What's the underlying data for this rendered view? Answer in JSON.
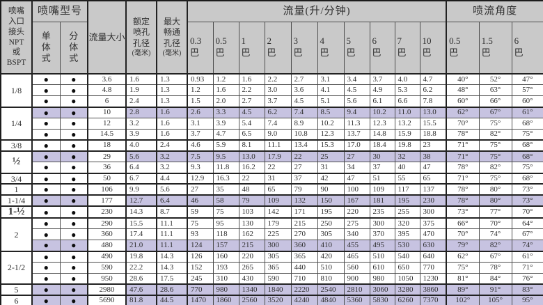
{
  "colors": {
    "header_bg": "#c9c9c9",
    "highlight_row": "#c7c3e1",
    "grid_line": "#4d4d4d",
    "frame": "#1c1c1c",
    "text": "#2e2e2e"
  },
  "dot": "●",
  "header": {
    "inlet_label": "喷嘴\n入口\n接头\nNPT\n或\nBSPT",
    "model_group_label": "喷嘴型号",
    "single_type_label": "单\n体\n式",
    "split_type_label": "分\n体\n式",
    "flow_size_label": "流量大小",
    "rated_orifice_label": "额定\n喷孔\n孔径",
    "max_orifice_label": "最大\n畅通\n孔径",
    "orifice_unit": "(毫米)",
    "flow_group_label": "流量(升/分钟)",
    "bar": "巴",
    "flow_pressures": [
      "0.3",
      "0.5",
      "1",
      "2",
      "3",
      "4",
      "5",
      "6",
      "7",
      "10"
    ],
    "angle_group_label": "喷流角度",
    "angle_pressures": [
      "0.5",
      "1.5",
      "6"
    ]
  },
  "groups": [
    {
      "size": "1/8",
      "bold": false,
      "rows": [
        {
          "size": "3.6",
          "rated": "1.6",
          "max": "1.3",
          "hl": false,
          "flows": [
            "0.93",
            "1.2",
            "1.6",
            "2.2",
            "2.7",
            "3.1",
            "3.4",
            "3.7",
            "4.0",
            "4.7"
          ],
          "angles": [
            "40°",
            "52°",
            "47°"
          ]
        },
        {
          "size": "4.8",
          "rated": "1.9",
          "max": "1.3",
          "hl": false,
          "flows": [
            "1.2",
            "1.6",
            "2.2",
            "3.0",
            "3.6",
            "4.1",
            "4.5",
            "4.9",
            "5.3",
            "6.2"
          ],
          "angles": [
            "48°",
            "63°",
            "57°"
          ]
        },
        {
          "size": "6",
          "rated": "2.4",
          "max": "1.3",
          "hl": false,
          "flows": [
            "1.5",
            "2.0",
            "2.7",
            "3.7",
            "4.5",
            "5.1",
            "5.6",
            "6.1",
            "6.6",
            "7.8"
          ],
          "angles": [
            "60°",
            "66°",
            "60°"
          ]
        }
      ]
    },
    {
      "size": "1/4",
      "bold": false,
      "rows": [
        {
          "size": "10",
          "rated": "2.8",
          "max": "1.6",
          "hl": true,
          "flows": [
            "2.6",
            "3.3",
            "4.5",
            "6.2",
            "7.4",
            "8.5",
            "9.4",
            "10.2",
            "11.0",
            "13.0"
          ],
          "angles": [
            "62°",
            "67°",
            "61°"
          ]
        },
        {
          "size": "12",
          "rated": "3.2",
          "max": "1.6",
          "hl": false,
          "flows": [
            "3.1",
            "3.9",
            "5.4",
            "7.4",
            "8.9",
            "10.2",
            "11.3",
            "12.3",
            "13.2",
            "15.5"
          ],
          "angles": [
            "70°",
            "75°",
            "68°"
          ]
        },
        {
          "size": "14.5",
          "rated": "3.9",
          "max": "1.6",
          "hl": false,
          "flows": [
            "3.7",
            "4.7",
            "6.5",
            "9.0",
            "10.8",
            "12.3",
            "13.7",
            "14.8",
            "15.9",
            "18.8"
          ],
          "angles": [
            "78°",
            "82°",
            "75°"
          ]
        }
      ]
    },
    {
      "size": "3/8",
      "bold": false,
      "rows": [
        {
          "size": "18",
          "rated": "4.0",
          "max": "2.4",
          "hl": false,
          "flows": [
            "4.6",
            "5.9",
            "8.1",
            "11.1",
            "13.4",
            "15.3",
            "17.0",
            "18.4",
            "19.8",
            "23"
          ],
          "angles": [
            "71°",
            "75°",
            "68°"
          ]
        }
      ]
    },
    {
      "size": "½",
      "bold": true,
      "rows": [
        {
          "size": "29",
          "rated": "5.6",
          "max": "3.2",
          "hl": true,
          "flows": [
            "7.5",
            "9.5",
            "13.0",
            "17.9",
            "22",
            "25",
            "27",
            "30",
            "32",
            "38"
          ],
          "angles": [
            "71°",
            "75°",
            "68°"
          ]
        },
        {
          "size": "36",
          "rated": "6.4",
          "max": "3.2",
          "hl": false,
          "flows": [
            "9.3",
            "11.8",
            "16.2",
            "22",
            "27",
            "31",
            "34",
            "37",
            "40",
            "47"
          ],
          "angles": [
            "78°",
            "82°",
            "75°"
          ]
        }
      ]
    },
    {
      "size": "3/4",
      "bold": false,
      "rows": [
        {
          "size": "50",
          "rated": "6.7",
          "max": "4.4",
          "hl": false,
          "flows": [
            "12.9",
            "16.3",
            "22",
            "31",
            "37",
            "42",
            "47",
            "51",
            "55",
            "65"
          ],
          "angles": [
            "71°",
            "75°",
            "68°"
          ]
        }
      ]
    },
    {
      "size": "1",
      "bold": false,
      "rows": [
        {
          "size": "106",
          "rated": "9.9",
          "max": "5.6",
          "hl": false,
          "flows": [
            "27",
            "35",
            "48",
            "65",
            "79",
            "90",
            "100",
            "109",
            "117",
            "137"
          ],
          "angles": [
            "78°",
            "80°",
            "73°"
          ]
        }
      ]
    },
    {
      "size": "1-1/4",
      "bold": false,
      "rows": [
        {
          "size": "177",
          "rated": "12.7",
          "max": "6.4",
          "hl": true,
          "flows": [
            "46",
            "58",
            "79",
            "109",
            "132",
            "150",
            "167",
            "181",
            "195",
            "230"
          ],
          "angles": [
            "78°",
            "80°",
            "73°"
          ]
        }
      ]
    },
    {
      "size": "1-½",
      "bold": true,
      "rows": [
        {
          "size": "230",
          "rated": "14.3",
          "max": "8.7",
          "hl": false,
          "flows": [
            "59",
            "75",
            "103",
            "142",
            "171",
            "195",
            "220",
            "235",
            "255",
            "300"
          ],
          "angles": [
            "73°",
            "77°",
            "70°"
          ]
        }
      ]
    },
    {
      "size": "2",
      "bold": false,
      "rows": [
        {
          "size": "290",
          "rated": "15.5",
          "max": "11.1",
          "hl": false,
          "flows": [
            "75",
            "95",
            "130",
            "179",
            "215",
            "250",
            "275",
            "300",
            "320",
            "375"
          ],
          "angles": [
            "66°",
            "70°",
            "64°"
          ]
        },
        {
          "size": "360",
          "rated": "17.4",
          "max": "11.1",
          "hl": false,
          "flows": [
            "93",
            "118",
            "162",
            "225",
            "270",
            "305",
            "340",
            "370",
            "395",
            "470"
          ],
          "angles": [
            "70°",
            "74°",
            "67°"
          ]
        },
        {
          "size": "480",
          "rated": "21.0",
          "max": "11.1",
          "hl": true,
          "flows": [
            "124",
            "157",
            "215",
            "300",
            "360",
            "410",
            "455",
            "495",
            "530",
            "630"
          ],
          "angles": [
            "79°",
            "82°",
            "74°"
          ]
        }
      ]
    },
    {
      "size": "2-1/2",
      "bold": false,
      "rows": [
        {
          "size": "490",
          "rated": "19.8",
          "max": "14.3",
          "hl": false,
          "flows": [
            "126",
            "160",
            "220",
            "305",
            "365",
            "420",
            "465",
            "510",
            "540",
            "640"
          ],
          "angles": [
            "62°",
            "67°",
            "61°"
          ]
        },
        {
          "size": "590",
          "rated": "22.2",
          "max": "14.3",
          "hl": false,
          "flows": [
            "152",
            "193",
            "265",
            "365",
            "440",
            "510",
            "560",
            "610",
            "650",
            "770"
          ],
          "angles": [
            "75°",
            "78°",
            "71°"
          ]
        },
        {
          "size": "950",
          "rated": "28.6",
          "max": "17.5",
          "hl": false,
          "flows": [
            "245",
            "310",
            "430",
            "590",
            "710",
            "810",
            "900",
            "980",
            "1050",
            "1230"
          ],
          "angles": [
            "81°",
            "84°",
            "76°"
          ]
        }
      ]
    },
    {
      "size": "5",
      "bold": false,
      "rows": [
        {
          "size": "2980",
          "rated": "47.6",
          "max": "28.6",
          "hl": true,
          "flows": [
            "770",
            "980",
            "1340",
            "1840",
            "2220",
            "2540",
            "2810",
            "3060",
            "3280",
            "3860"
          ],
          "angles": [
            "89°",
            "91°",
            "83°"
          ]
        }
      ]
    },
    {
      "size": "6",
      "bold": false,
      "rows": [
        {
          "size": "5690",
          "rated": "81.8",
          "max": "44.5",
          "hl": true,
          "flows": [
            "1470",
            "1860",
            "2560",
            "3520",
            "4240",
            "4840",
            "5360",
            "5830",
            "6260",
            "7370"
          ],
          "angles": [
            "102°",
            "105°",
            "95°"
          ]
        }
      ]
    }
  ]
}
